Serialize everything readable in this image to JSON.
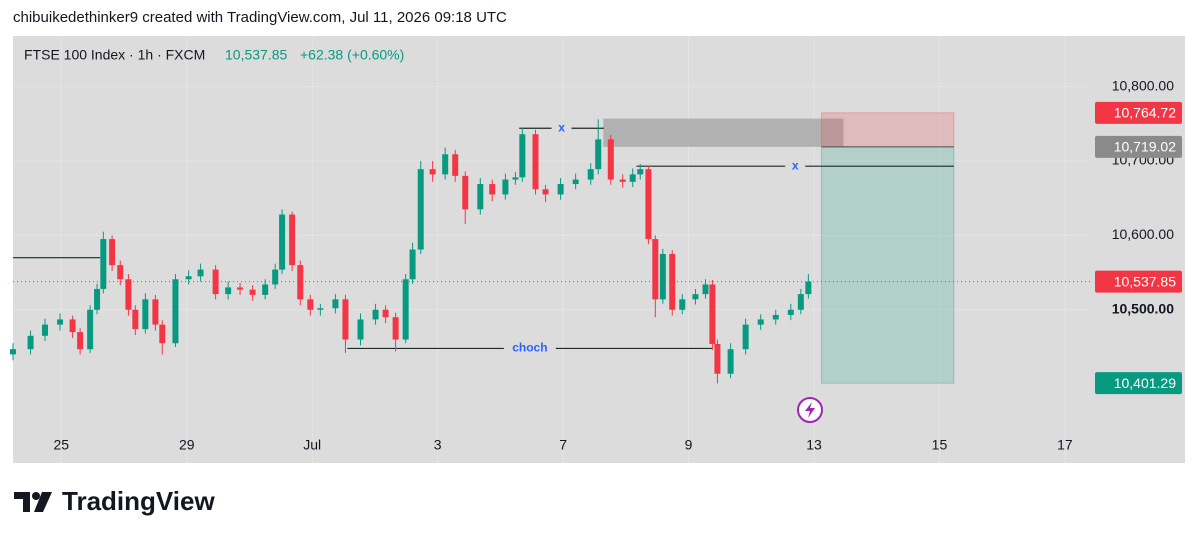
{
  "header": {
    "text": "chibuikedethinker9 created with TradingView.com, Jul 11, 2026 09:18 UTC"
  },
  "logo": {
    "text": "TradingView"
  },
  "chart_data": {
    "type": "candlestick",
    "title": "FTSE 100 Index · 1h · FXCM",
    "last_price": {
      "value": 10537.85,
      "label": "10,537.85"
    },
    "change": "+62.38 (+0.60%)",
    "up_color": "#089981",
    "down_color": "#f23645",
    "grid": true,
    "xlim": [
      -0.77,
      16.4
    ],
    "xticks": [
      {
        "value": 0,
        "label": "25"
      },
      {
        "value": 2,
        "label": "29"
      },
      {
        "value": 4,
        "label": "Jul"
      },
      {
        "value": 6,
        "label": "3"
      },
      {
        "value": 8,
        "label": "7"
      },
      {
        "value": 10,
        "label": "9"
      },
      {
        "value": 12,
        "label": "13"
      },
      {
        "value": 14,
        "label": "15"
      },
      {
        "value": 16,
        "label": "17"
      }
    ],
    "ylim": [
      10294,
      10868
    ],
    "yticks": [
      {
        "value": 10500,
        "label": "10,500.00"
      },
      {
        "value": 10600,
        "label": "10,600.00"
      },
      {
        "value": 10700,
        "label": "10,700.00"
      },
      {
        "value": 10800,
        "label": "10,800.00"
      }
    ],
    "x": [
      -0.77,
      -0.49,
      -0.26,
      -0.02,
      0.18,
      0.3,
      0.46,
      0.57,
      0.67,
      0.81,
      0.94,
      1.07,
      1.18,
      1.34,
      1.5,
      1.61,
      1.82,
      2.03,
      2.22,
      2.46,
      2.66,
      2.85,
      3.05,
      3.25,
      3.41,
      3.52,
      3.68,
      3.81,
      3.97,
      4.13,
      4.37,
      4.53,
      4.77,
      5.01,
      5.17,
      5.33,
      5.49,
      5.6,
      5.73,
      5.92,
      6.12,
      6.28,
      6.44,
      6.68,
      6.87,
      7.08,
      7.24,
      7.35,
      7.56,
      7.72,
      7.96,
      8.2,
      8.44,
      8.56,
      8.76,
      8.95,
      9.11,
      9.23,
      9.36,
      9.47,
      9.59,
      9.74,
      9.9,
      10.11,
      10.27,
      10.38,
      10.46,
      10.67,
      10.91,
      11.15,
      11.39,
      11.63,
      11.79,
      11.91
    ],
    "open": [
      10440,
      10447,
      10465,
      10480,
      10487,
      10470,
      10447,
      10500,
      10528,
      10595,
      10560,
      10541,
      10500,
      10474,
      10514,
      10480,
      10455,
      10541,
      10545,
      10554,
      10521,
      10530,
      10527,
      10520,
      10534,
      10554,
      10628,
      10560,
      10514,
      10500,
      10502,
      10514,
      10460,
      10487,
      10500,
      10490,
      10460,
      10541,
      10581,
      10689,
      10682,
      10709,
      10680,
      10635,
      10669,
      10655,
      10675,
      10678,
      10736,
      10662,
      10655,
      10669,
      10675,
      10689,
      10729,
      10675,
      10672,
      10682,
      10689,
      10595,
      10514,
      10575,
      10500,
      10514,
      10521,
      10534,
      10454,
      10414,
      10447,
      10480,
      10487,
      10493,
      10500,
      10521
    ],
    "high": [
      10455,
      10472,
      10488,
      10495,
      10492,
      10475,
      10506,
      10535,
      10605,
      10600,
      10566,
      10548,
      10506,
      10522,
      10520,
      10486,
      10548,
      10553,
      10562,
      10560,
      10538,
      10536,
      10533,
      10541,
      10562,
      10635,
      10632,
      10566,
      10520,
      10508,
      10521,
      10520,
      10495,
      10508,
      10506,
      10496,
      10548,
      10590,
      10700,
      10700,
      10718,
      10715,
      10686,
      10677,
      10675,
      10683,
      10685,
      10745,
      10742,
      10668,
      10677,
      10683,
      10697,
      10756,
      10735,
      10682,
      10690,
      10696,
      10694,
      10600,
      10582,
      10580,
      10521,
      10528,
      10541,
      10540,
      10460,
      10455,
      10488,
      10494,
      10500,
      10508,
      10528,
      10548
    ],
    "low": [
      10432,
      10440,
      10458,
      10472,
      10462,
      10440,
      10442,
      10494,
      10522,
      10552,
      10533,
      10492,
      10466,
      10468,
      10472,
      10440,
      10450,
      10534,
      10538,
      10514,
      10514,
      10520,
      10512,
      10514,
      10528,
      10548,
      10552,
      10506,
      10492,
      10492,
      10495,
      10442,
      10452,
      10480,
      10482,
      10444,
      10455,
      10535,
      10575,
      10672,
      10675,
      10672,
      10615,
      10628,
      10646,
      10648,
      10668,
      10672,
      10655,
      10645,
      10648,
      10662,
      10668,
      10682,
      10668,
      10664,
      10665,
      10675,
      10588,
      10490,
      10508,
      10492,
      10494,
      10507,
      10515,
      10446,
      10401,
      10408,
      10440,
      10473,
      10480,
      10486,
      10494,
      10515
    ],
    "close": [
      10447,
      10465,
      10480,
      10487,
      10470,
      10447,
      10500,
      10528,
      10595,
      10560,
      10541,
      10500,
      10474,
      10514,
      10480,
      10455,
      10541,
      10545,
      10554,
      10521,
      10530,
      10527,
      10520,
      10534,
      10554,
      10628,
      10560,
      10514,
      10500,
      10502,
      10514,
      10460,
      10487,
      10500,
      10490,
      10460,
      10541,
      10581,
      10689,
      10682,
      10709,
      10680,
      10635,
      10669,
      10655,
      10675,
      10678,
      10736,
      10662,
      10655,
      10669,
      10675,
      10689,
      10729,
      10675,
      10672,
      10682,
      10689,
      10595,
      10514,
      10575,
      10500,
      10514,
      10521,
      10534,
      10454,
      10414,
      10447,
      10480,
      10487,
      10493,
      10500,
      10521,
      10537.85
    ],
    "drawings": [
      {
        "price": 10570,
        "x": [
          -0.77,
          0.62
        ]
      },
      {
        "price": 10744,
        "x": [
          7.3,
          8.65
        ],
        "label": "x"
      },
      {
        "price": 10693,
        "x": [
          9.17,
          14.23
        ],
        "label": "x"
      },
      {
        "price": 10448,
        "x": [
          4.56,
          10.38
        ],
        "label": "choch"
      }
    ],
    "zone": {
      "x": [
        8.64,
        12.47
      ],
      "price": [
        10719.02,
        10757
      ]
    },
    "position": {
      "x": [
        12.12,
        14.23
      ],
      "stop": 10764.72,
      "entry": 10719.02,
      "target": 10401.29
    },
    "price_labels": [
      {
        "value": 10764.72,
        "label": "10,764.72",
        "color": "#f23645"
      },
      {
        "value": 10719.02,
        "label": "10,719.02",
        "color": "#8a8a8a"
      },
      {
        "value": 10537.85,
        "label": "10,537.85",
        "color": "#f23645"
      },
      {
        "value": 10401.29,
        "label": "10,401.29",
        "color": "#089981"
      }
    ]
  }
}
